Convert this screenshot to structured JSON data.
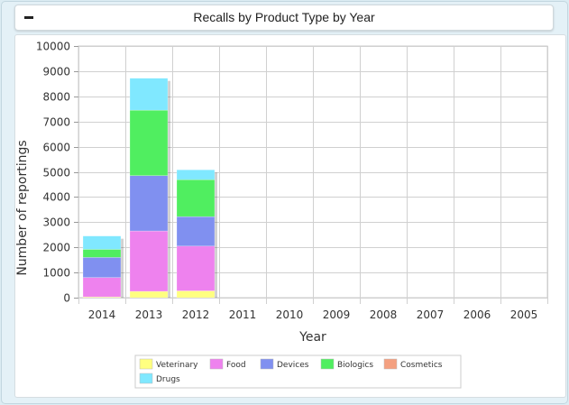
{
  "header": {
    "title": "Recalls by Product Type by Year"
  },
  "chart_data": {
    "type": "bar",
    "stacked": true,
    "categories": [
      "2014",
      "2013",
      "2012",
      "2011",
      "2010",
      "2009",
      "2008",
      "2007",
      "2006",
      "2005"
    ],
    "series": [
      {
        "name": "Veterinary",
        "color": "#ffff80",
        "values": [
          30,
          250,
          270,
          0,
          0,
          0,
          0,
          0,
          0,
          0
        ]
      },
      {
        "name": "Food",
        "color": "#ee82ee",
        "values": [
          770,
          2400,
          1780,
          0,
          0,
          0,
          0,
          0,
          0,
          0
        ]
      },
      {
        "name": "Devices",
        "color": "#8090f0",
        "values": [
          800,
          2200,
          1170,
          0,
          0,
          0,
          0,
          0,
          0,
          0
        ]
      },
      {
        "name": "Biologics",
        "color": "#50ee60",
        "values": [
          320,
          2600,
          1470,
          0,
          0,
          0,
          0,
          0,
          0,
          0
        ]
      },
      {
        "name": "Cosmetics",
        "color": "#f4a080",
        "values": [
          0,
          0,
          0,
          0,
          0,
          0,
          0,
          0,
          0,
          0
        ]
      },
      {
        "name": "Drugs",
        "color": "#80e8ff",
        "values": [
          530,
          1270,
          390,
          0,
          0,
          0,
          0,
          0,
          0,
          0
        ]
      }
    ],
    "xlabel": "Year",
    "ylabel": "Number of reportings",
    "ylim": [
      0,
      10000
    ],
    "yticks": [
      0,
      1000,
      2000,
      3000,
      4000,
      5000,
      6000,
      7000,
      8000,
      9000,
      10000
    ],
    "grid": true,
    "legend_position": "bottom"
  }
}
